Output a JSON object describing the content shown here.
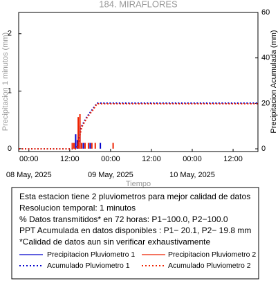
{
  "chart_data": {
    "type": "line",
    "title": "184. MIRAFLORES",
    "x_label": "Tiempo",
    "y_label": "Precipitacion 1 minutos (mm)",
    "y2_label": "Precipitacion Acumulada (mm)",
    "xlim": [
      "2025-05-07 21:00",
      "2025-05-10 19:18"
    ],
    "xticks": [
      {
        "value": "2025-05-08 00:00",
        "label": "00:00"
      },
      {
        "value": "2025-05-08 12:00",
        "label": "12:00"
      },
      {
        "value": "2025-05-09 00:00",
        "label": "00:00"
      },
      {
        "value": "2025-05-09 12:00",
        "label": "12:00"
      },
      {
        "value": "2025-05-10 00:00",
        "label": "00:00"
      },
      {
        "value": "2025-05-10 12:00",
        "label": "12:00"
      }
    ],
    "xtick_dates": [
      {
        "value": "2025-05-08 00:00",
        "label": "08 May, 2025"
      },
      {
        "value": "2025-05-09 00:00",
        "label": "09 May, 2025"
      },
      {
        "value": "2025-05-10 00:00",
        "label": "10 May, 2025"
      }
    ],
    "ylim": [
      -0.05,
      2.37
    ],
    "yticks": [
      0,
      1,
      2
    ],
    "y2lim": [
      -1.2,
      60
    ],
    "y2ticks": [
      0,
      20,
      40,
      60
    ],
    "series": [
      {
        "name": "Precipitacion Pluviometro 1",
        "color": "#0000cc",
        "style": "bar",
        "x": [
          "2025-05-08 13:45",
          "2025-05-08 14:15",
          "2025-05-08 15:00",
          "2025-05-08 16:00",
          "2025-05-08 18:00",
          "2025-05-08 21:00"
        ],
        "values": [
          0.25,
          0.15,
          0.4,
          0.1,
          0.1,
          0.1
        ]
      },
      {
        "name": "Precipitacion Pluviometro 2",
        "color": "#ee2200",
        "style": "bar",
        "x": [
          "2025-05-08 12:45",
          "2025-05-08 13:15",
          "2025-05-08 14:30",
          "2025-05-08 15:00",
          "2025-05-08 15:30",
          "2025-05-08 16:30",
          "2025-05-08 17:30",
          "2025-05-08 18:30",
          "2025-05-08 19:30",
          "2025-05-09 00:45"
        ],
        "values": [
          0.1,
          0.1,
          0.55,
          0.6,
          0.1,
          0.1,
          0.1,
          0.1,
          0.1,
          0.1
        ]
      },
      {
        "name": "Acumulado Pluviometro 1",
        "color": "#0000cc",
        "style": "dotted",
        "axis": "y2",
        "x": [
          "2025-05-07 21:00",
          "2025-05-08 14:00",
          "2025-05-08 14:30",
          "2025-05-08 15:30",
          "2025-05-08 17:00",
          "2025-05-08 19:00",
          "2025-05-08 20:00",
          "2025-05-10 19:18"
        ],
        "values": [
          0,
          0,
          3,
          10,
          14,
          18,
          20.1,
          20.1
        ]
      },
      {
        "name": "Acumulado Pluviometro 2",
        "color": "#ee2200",
        "style": "dotted",
        "axis": "y2",
        "x": [
          "2025-05-07 21:00",
          "2025-05-08 14:00",
          "2025-05-08 14:30",
          "2025-05-08 15:30",
          "2025-05-08 17:00",
          "2025-05-08 19:00",
          "2025-05-08 20:00",
          "2025-05-10 19:18"
        ],
        "values": [
          0,
          0,
          2.5,
          9.5,
          13.5,
          17.5,
          19.8,
          19.8
        ]
      }
    ],
    "notes": [
      "Esta estacion tiene 2 pluviometros para mejor calidad de datos",
      "Resolucion temporal: 1 minutos",
      "% Datos transmitidos* en 72 horas: P1−100.0, P2−100.0",
      "PPT Acumulada en datos disponibles : P1− 20.1, P2− 19.8 mm",
      "*Calidad de datos aun sin verificar exhaustivamente"
    ]
  }
}
